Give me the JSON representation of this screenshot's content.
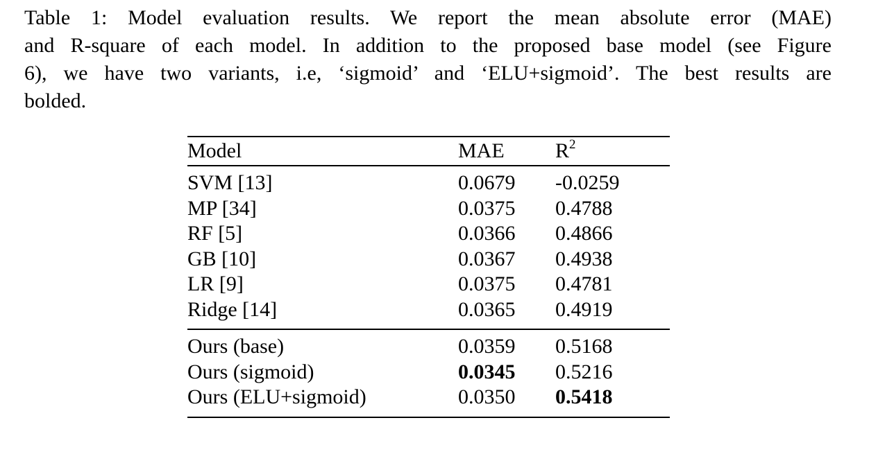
{
  "colors": {
    "background": "#ffffff",
    "text": "#000000",
    "rule": "#000000"
  },
  "caption": {
    "lines": [
      "Table 1: Model evaluation results. We report the mean absolute error (MAE)",
      "and R-square of each model. In addition to the proposed base model (see Figure",
      "6), we have two variants, i.e, ‘sigmoid’ and ‘ELU+sigmoid’. The best results are",
      "bolded."
    ]
  },
  "table": {
    "headers": [
      {
        "label": "Model"
      },
      {
        "label": "MAE"
      },
      {
        "label": "R",
        "sup": "2"
      }
    ],
    "groups": [
      {
        "name": "baseline-models",
        "rows": [
          {
            "model": "SVM [13]",
            "mae": "0.0679",
            "r2": "-0.0259"
          },
          {
            "model": "MP [34]",
            "mae": "0.0375",
            "r2": "0.4788"
          },
          {
            "model": "RF [5]",
            "mae": "0.0366",
            "r2": "0.4866"
          },
          {
            "model": "GB [10]",
            "mae": "0.0367",
            "r2": "0.4938"
          },
          {
            "model": "LR [9]",
            "mae": "0.0375",
            "r2": "0.4781"
          },
          {
            "model": "Ridge [14]",
            "mae": "0.0365",
            "r2": "0.4919"
          }
        ]
      },
      {
        "name": "ours-models",
        "rows": [
          {
            "model": "Ours (base)",
            "mae": "0.0359",
            "r2": "0.5168"
          },
          {
            "model": "Ours (sigmoid)",
            "mae": "0.0345",
            "r2": "0.5216",
            "bold": [
              "mae"
            ]
          },
          {
            "model": "Ours (ELU+sigmoid)",
            "mae": "0.0350",
            "r2": "0.5418",
            "bold": [
              "r2"
            ]
          }
        ]
      }
    ]
  }
}
